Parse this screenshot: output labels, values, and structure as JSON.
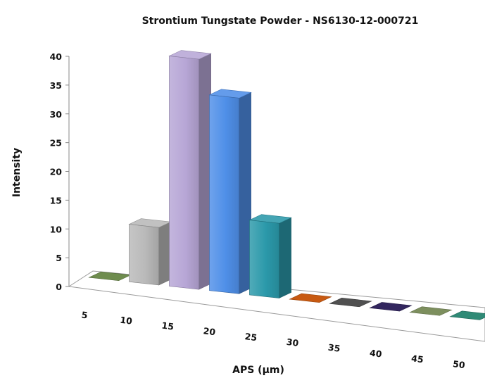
{
  "chart_data": {
    "type": "bar",
    "title": "Strontium Tungstate Powder - NS6130-12-000721",
    "xlabel": "APS (µm)",
    "ylabel": "Intensity",
    "categories": [
      "5",
      "10",
      "15",
      "20",
      "25",
      "30",
      "35",
      "40",
      "45",
      "50"
    ],
    "values": [
      0,
      10,
      40,
      34,
      13,
      0,
      0,
      0,
      0,
      0
    ],
    "colors": [
      "#6E8C4E",
      "#B9B9B9",
      "#B7A6D6",
      "#4F8FE8",
      "#2B99AA",
      "#C85A12",
      "#505050",
      "#32265E",
      "#7D8F5E",
      "#2F8A76"
    ],
    "y_ticks": [
      "0",
      "5",
      "10",
      "15",
      "20",
      "25",
      "30",
      "35",
      "40"
    ],
    "ylim": [
      0,
      40
    ],
    "grid": false,
    "legend": "none",
    "style": "3d-perspective"
  }
}
